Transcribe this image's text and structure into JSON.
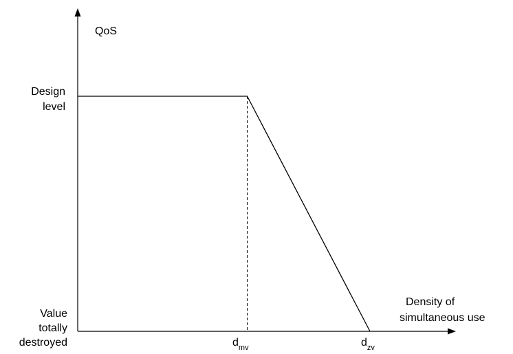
{
  "chart_data": {
    "type": "line",
    "title": "",
    "ylabel": "QoS",
    "xlabel": {
      "line1": "Density of",
      "line2": "simultaneous use"
    },
    "y_levels": {
      "design": {
        "line1": "Design",
        "line2": "level"
      },
      "destroyed": {
        "line1": "Value",
        "line2": "totally",
        "line3": "destroyed"
      }
    },
    "x_ticks": {
      "dmv": {
        "base": "d",
        "sub": "mv"
      },
      "dzv": {
        "base": "d",
        "sub": "zv"
      }
    },
    "xlim": [
      0,
      1.27
    ],
    "ylim": [
      0,
      1.17
    ],
    "series": [
      {
        "points": [
          {
            "x": 0,
            "y": 1
          },
          {
            "x": 0.58,
            "y": 1
          },
          {
            "x": 1,
            "y": 0
          }
        ]
      }
    ],
    "reference_line": {
      "x": 0.58,
      "style": "dashed"
    },
    "grid": false,
    "colors": {
      "line": "#000000",
      "axis": "#000000"
    }
  }
}
